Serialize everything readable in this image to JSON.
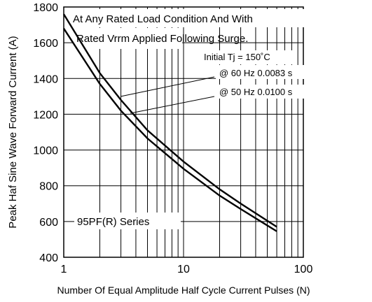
{
  "chart_data": {
    "type": "line",
    "xlabel": "Number Of Equal Amplitude Half Cycle Current Pulses (N)",
    "ylabel": "Peak Haf Sine Wave Forward Current (A)",
    "x_scale": "log",
    "xlim": [
      1,
      100
    ],
    "ylim": [
      400,
      1800
    ],
    "x_ticks": [
      1,
      10,
      100
    ],
    "y_ticks": [
      400,
      600,
      800,
      1000,
      1200,
      1400,
      1600,
      1800
    ],
    "grid": true,
    "annotations": {
      "condition_line1": "At Any Rated Load Condition And With",
      "condition_line2": "Rated Vrrm Applied Following Surge.",
      "initial_tj": "Initial Tj = 150˚C",
      "series_label_60": "@ 60 Hz 0.0083 s",
      "series_label_50": "@ 50 Hz 0.0100 s",
      "series_name": "95PF(R) Series"
    },
    "series": [
      {
        "name": "@ 60 Hz 0.0083 s",
        "x": [
          1,
          2,
          3,
          5,
          10,
          20,
          30,
          60
        ],
        "y": [
          1760,
          1430,
          1280,
          1110,
          935,
          780,
          700,
          570
        ]
      },
      {
        "name": "@ 50 Hz 0.0100 s",
        "x": [
          1,
          2,
          3,
          5,
          10,
          20,
          30,
          60
        ],
        "y": [
          1680,
          1370,
          1220,
          1065,
          895,
          745,
          670,
          545
        ]
      }
    ]
  }
}
